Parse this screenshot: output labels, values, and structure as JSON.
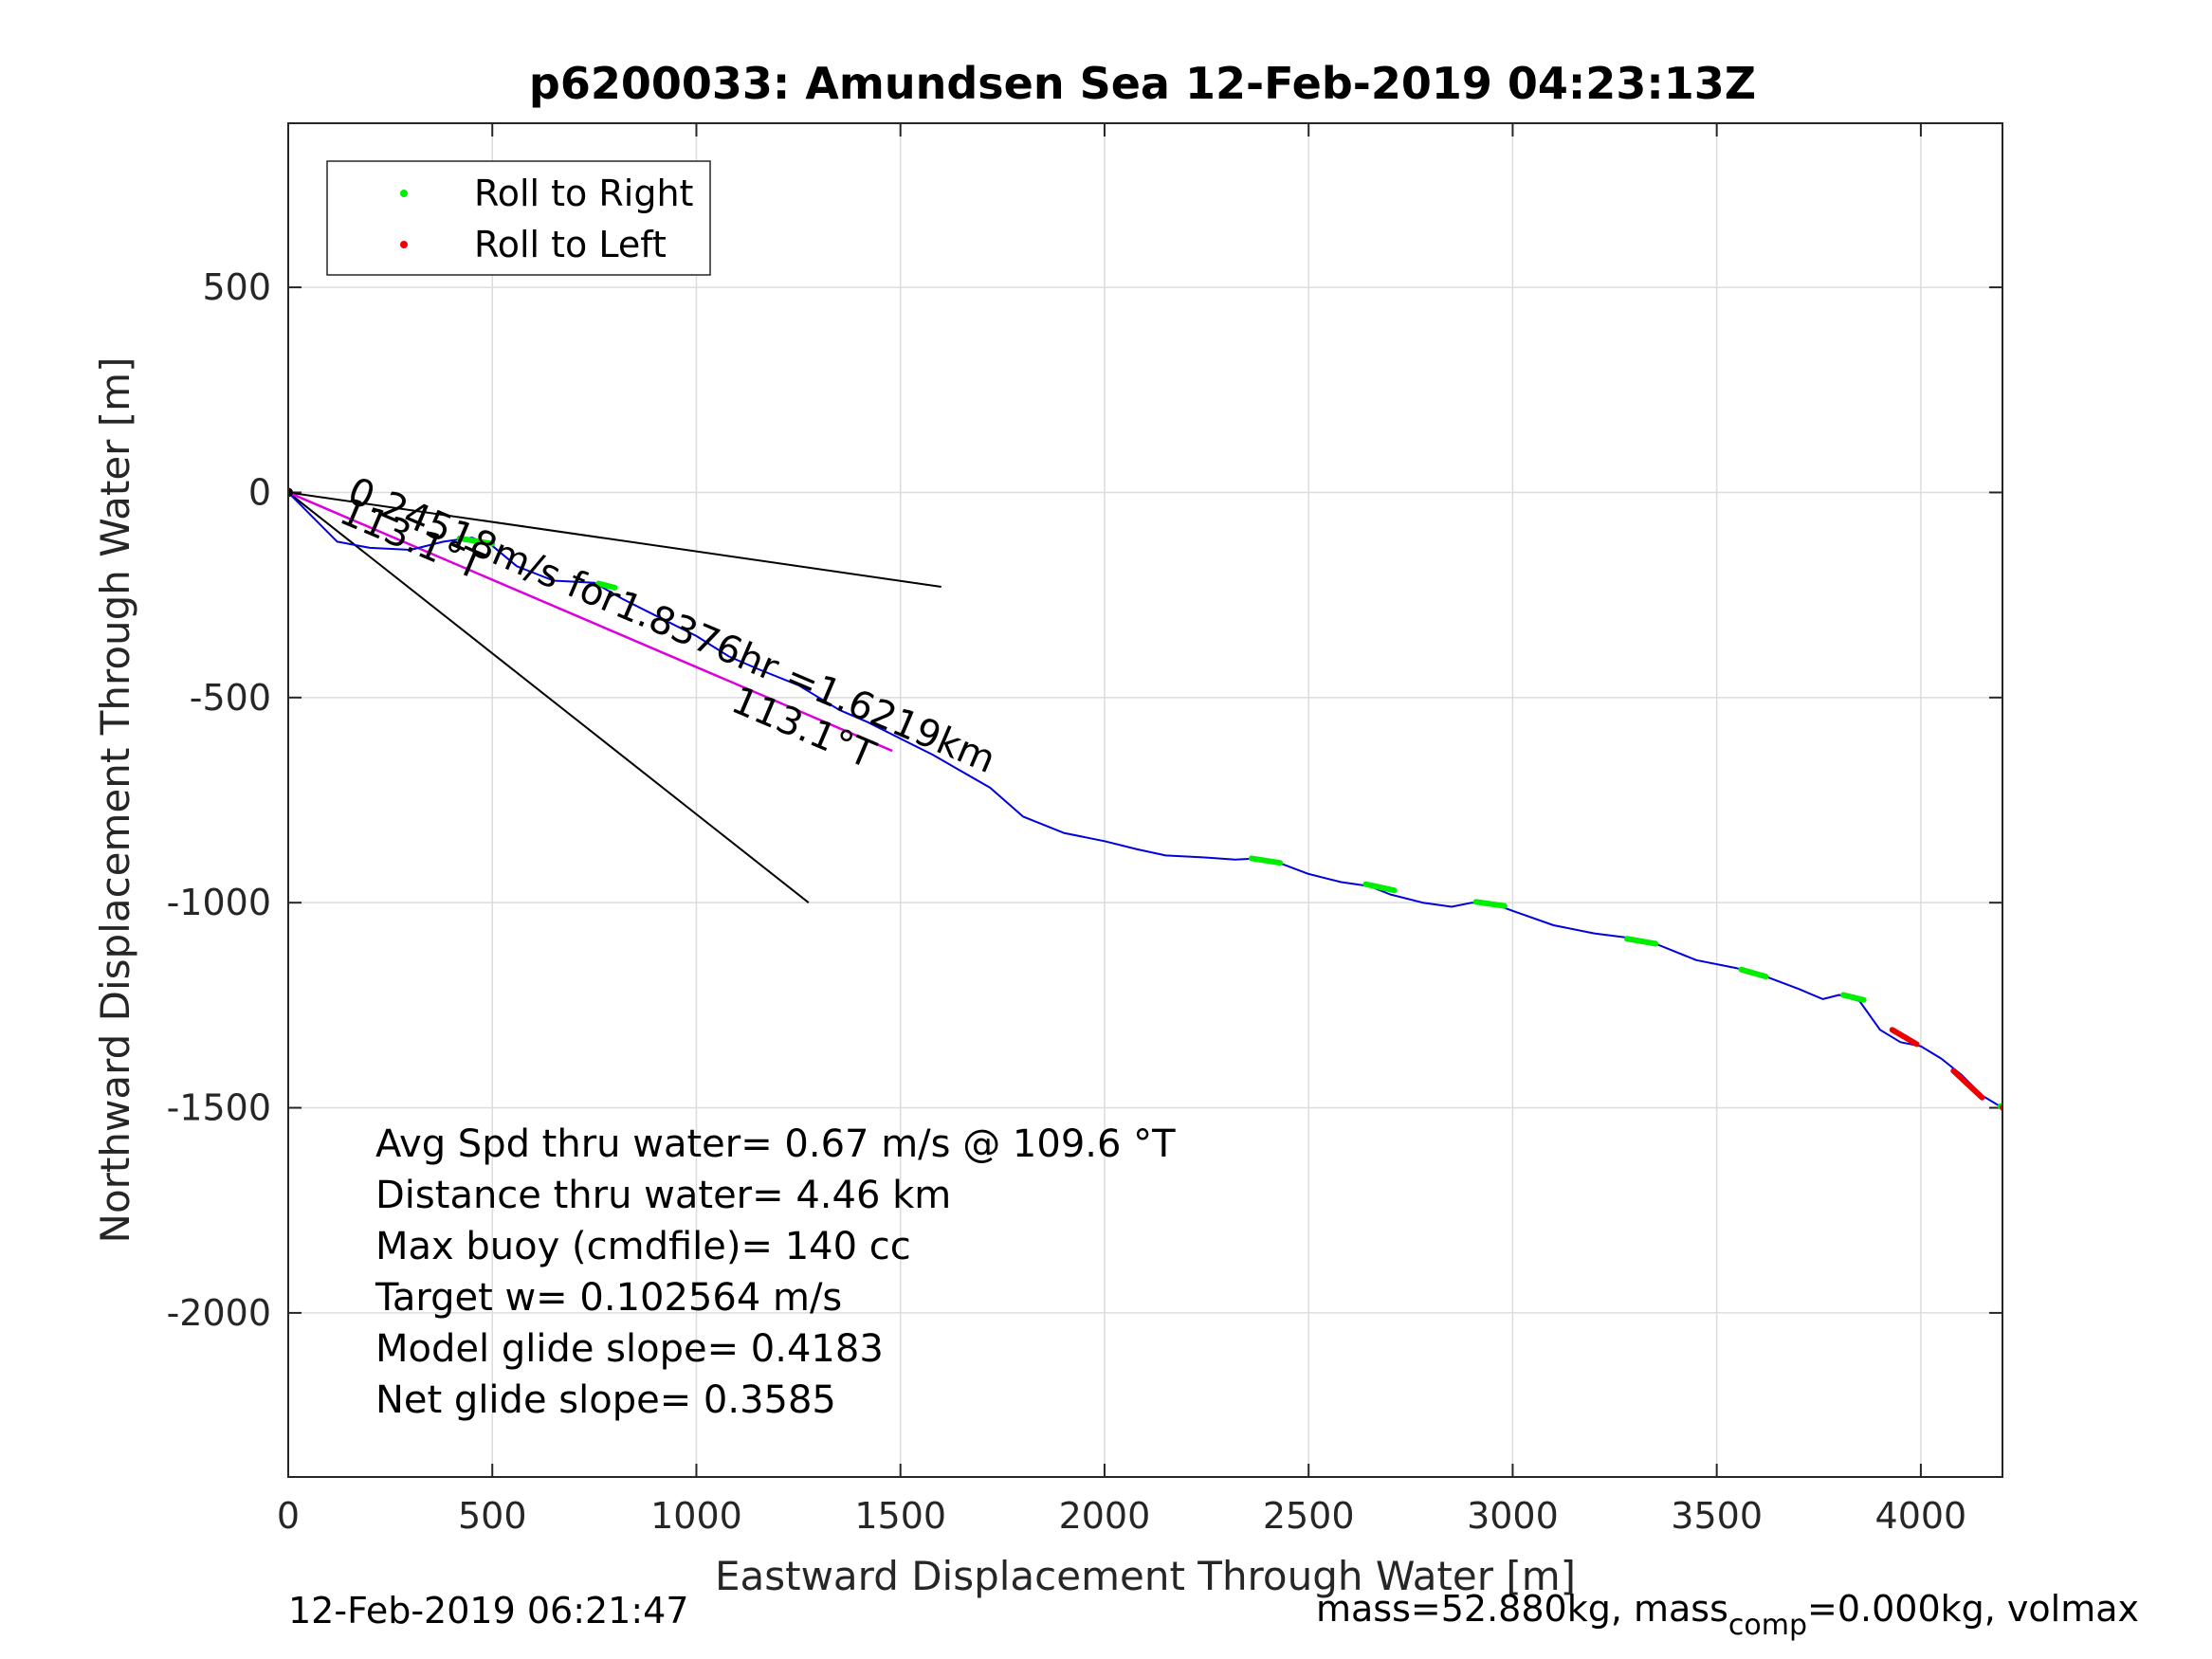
{
  "chart_data": {
    "type": "line",
    "title": "p6200033: Amundsen Sea 12-Feb-2019 04:23:13Z",
    "xlabel": "Eastward Displacement Through Water [m]",
    "ylabel": "Northward Displacement Through Water [m]",
    "xlim": [
      0,
      4200
    ],
    "ylim": [
      -2400,
      900
    ],
    "xticks": [
      0,
      500,
      1000,
      1500,
      2000,
      2500,
      3000,
      3500,
      4000
    ],
    "yticks": [
      -2000,
      -1500,
      -1000,
      -500,
      0,
      500
    ],
    "xtick_labels": [
      "0",
      "500",
      "1000",
      "1500",
      "2000",
      "2500",
      "3000",
      "3500",
      "4000"
    ],
    "ytick_labels": [
      "-2000",
      "-1500",
      "-1000",
      "-500",
      "0",
      "500"
    ],
    "grid": true,
    "legend_position": "top-left",
    "legend": [
      {
        "label": "Roll to Right",
        "color": "#00ee00"
      },
      {
        "label": "Roll to Left",
        "color": "#ee0000"
      }
    ],
    "track": {
      "color": "#0000dd",
      "x": [
        0,
        60,
        120,
        200,
        300,
        380,
        450,
        500,
        560,
        650,
        750,
        820,
        900,
        1000,
        1080,
        1150,
        1250,
        1350,
        1420,
        1500,
        1580,
        1650,
        1720,
        1800,
        1900,
        2000,
        2080,
        2150,
        2250,
        2320,
        2380,
        2420,
        2500,
        2580,
        2650,
        2700,
        2780,
        2850,
        2900,
        2950,
        3000,
        3100,
        3200,
        3280,
        3350,
        3450,
        3550,
        3620,
        3700,
        3760,
        3800,
        3850,
        3900,
        3950,
        4000,
        4050,
        4100,
        4150,
        4200
      ],
      "y": [
        0,
        -60,
        -120,
        -135,
        -140,
        -120,
        -110,
        -130,
        -180,
        -215,
        -220,
        -260,
        -300,
        -350,
        -400,
        -430,
        -470,
        -530,
        -560,
        -600,
        -640,
        -680,
        -720,
        -790,
        -830,
        -850,
        -870,
        -885,
        -890,
        -895,
        -892,
        -900,
        -930,
        -950,
        -960,
        -980,
        -1000,
        -1010,
        -1000,
        -1002,
        -1020,
        -1055,
        -1075,
        -1085,
        -1100,
        -1140,
        -1160,
        -1180,
        -1210,
        -1235,
        -1225,
        -1240,
        -1310,
        -1340,
        -1350,
        -1380,
        -1420,
        -1470,
        -1500
      ]
    },
    "roll_right_segments": [
      {
        "x": [
          420,
          500
        ],
        "y": [
          -112,
          -125
        ]
      },
      {
        "x": [
          760,
          800
        ],
        "y": [
          -222,
          -232
        ]
      },
      {
        "x": [
          2360,
          2430
        ],
        "y": [
          -892,
          -903
        ]
      },
      {
        "x": [
          2640,
          2710
        ],
        "y": [
          -955,
          -970
        ]
      },
      {
        "x": [
          2910,
          2980
        ],
        "y": [
          -998,
          -1008
        ]
      },
      {
        "x": [
          3280,
          3350
        ],
        "y": [
          -1088,
          -1100
        ]
      },
      {
        "x": [
          3560,
          3620
        ],
        "y": [
          -1163,
          -1180
        ]
      },
      {
        "x": [
          3810,
          3860
        ],
        "y": [
          -1225,
          -1237
        ]
      },
      {
        "x": [
          4195,
          4210
        ],
        "y": [
          -1496,
          -1500
        ]
      }
    ],
    "roll_left_segments": [
      {
        "x": [
          3930,
          3990
        ],
        "y": [
          -1310,
          -1345
        ]
      },
      {
        "x": [
          4080,
          4150
        ],
        "y": [
          -1410,
          -1475
        ]
      },
      {
        "x": [
          4200,
          4202
        ],
        "y": [
          -1500,
          -1502
        ]
      }
    ],
    "current_vector": {
      "color": "#dd00dd",
      "x": [
        0,
        1480
      ],
      "y": [
        0,
        -630
      ]
    },
    "direction_lines": [
      {
        "x": [
          0,
          1600
        ],
        "y": [
          0,
          -230
        ]
      },
      {
        "x": [
          0,
          1275
        ],
        "y": [
          0,
          -1000
        ]
      }
    ],
    "annotations": [
      {
        "text": "0.24518m/s for1.8376hr =1.6219km",
        "x": 140,
        "y": -20,
        "angle": 23
      },
      {
        "text": "113.1°T",
        "x": 120,
        "y": -70,
        "angle": 23
      },
      {
        "text": "113.1°T",
        "x": 1080,
        "y": -530,
        "angle": 23
      }
    ]
  },
  "stats": {
    "lines": [
      "Avg Spd thru water=  0.67 m/s @ 109.6 °T",
      "Distance thru water=  4.46 km",
      "Max buoy (cmdfile)= 140 cc",
      "Target w= 0.102564 m/s",
      "Model glide slope= 0.4183",
      "Net glide slope= 0.3585"
    ]
  },
  "footer": {
    "timestamp": "12-Feb-2019 06:21:47",
    "mass_prefix": "mass=52.880kg, mass",
    "mass_subscript": "comp",
    "mass_suffix": "=0.000kg, volmax"
  }
}
